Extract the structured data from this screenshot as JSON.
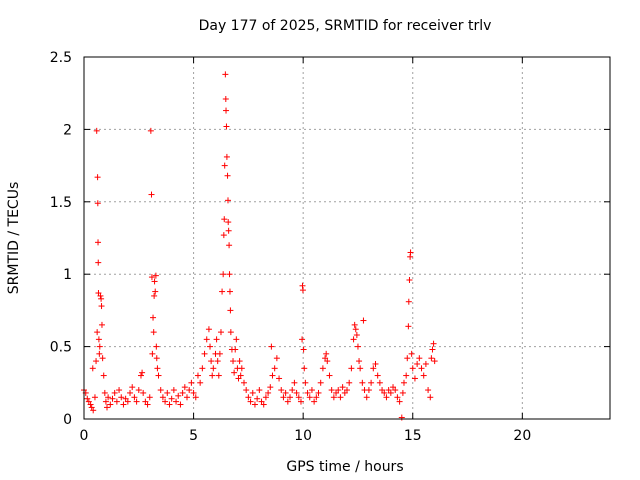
{
  "chart_data": {
    "type": "scatter",
    "title": "Day 177 of 2025, SRMTID for receiver trlv",
    "xlabel": "GPS time / hours",
    "ylabel": "SRMTID / TECUs",
    "xlim": [
      0,
      24
    ],
    "ylim": [
      0,
      2.5
    ],
    "xticks": [
      0,
      5,
      10,
      15,
      20
    ],
    "yticks": [
      0,
      0.5,
      1,
      1.5,
      2,
      2.5
    ],
    "xtick_labels": [
      "0",
      "5",
      "10",
      "15",
      "20"
    ],
    "ytick_labels": [
      "0",
      "0.5",
      "1",
      "1.5",
      "2",
      "2.5"
    ],
    "grid": true,
    "marker": "plus",
    "series_color": "#ff0000",
    "series": [
      {
        "name": "SRMTID",
        "points": [
          [
            0.0,
            0.2
          ],
          [
            0.08,
            0.18
          ],
          [
            0.15,
            0.14
          ],
          [
            0.22,
            0.12
          ],
          [
            0.3,
            0.1
          ],
          [
            0.35,
            0.08
          ],
          [
            0.4,
            0.35
          ],
          [
            0.42,
            0.06
          ],
          [
            0.5,
            0.15
          ],
          [
            0.55,
            0.4
          ],
          [
            0.58,
            1.99
          ],
          [
            0.6,
            0.6
          ],
          [
            0.62,
            1.67
          ],
          [
            0.63,
            1.49
          ],
          [
            0.64,
            1.22
          ],
          [
            0.65,
            1.08
          ],
          [
            0.66,
            0.87
          ],
          [
            0.68,
            0.55
          ],
          [
            0.7,
            0.45
          ],
          [
            0.72,
            0.5
          ],
          [
            0.75,
            0.85
          ],
          [
            0.78,
            0.83
          ],
          [
            0.8,
            0.78
          ],
          [
            0.82,
            0.65
          ],
          [
            0.85,
            0.42
          ],
          [
            0.9,
            0.3
          ],
          [
            0.95,
            0.18
          ],
          [
            1.0,
            0.12
          ],
          [
            1.05,
            0.08
          ],
          [
            1.1,
            0.15
          ],
          [
            1.2,
            0.1
          ],
          [
            1.3,
            0.14
          ],
          [
            1.4,
            0.18
          ],
          [
            1.5,
            0.12
          ],
          [
            1.6,
            0.2
          ],
          [
            1.7,
            0.15
          ],
          [
            1.8,
            0.1
          ],
          [
            1.9,
            0.14
          ],
          [
            2.0,
            0.12
          ],
          [
            2.1,
            0.18
          ],
          [
            2.2,
            0.22
          ],
          [
            2.3,
            0.15
          ],
          [
            2.4,
            0.12
          ],
          [
            2.5,
            0.2
          ],
          [
            2.6,
            0.3
          ],
          [
            2.65,
            0.32
          ],
          [
            2.7,
            0.18
          ],
          [
            2.8,
            0.12
          ],
          [
            2.9,
            0.1
          ],
          [
            3.0,
            0.15
          ],
          [
            3.05,
            1.99
          ],
          [
            3.08,
            1.55
          ],
          [
            3.1,
            0.98
          ],
          [
            3.12,
            0.45
          ],
          [
            3.15,
            0.7
          ],
          [
            3.18,
            0.6
          ],
          [
            3.2,
            0.85
          ],
          [
            3.22,
            0.95
          ],
          [
            3.25,
            0.88
          ],
          [
            3.28,
            0.99
          ],
          [
            3.3,
            0.5
          ],
          [
            3.32,
            0.42
          ],
          [
            3.35,
            0.35
          ],
          [
            3.4,
            0.3
          ],
          [
            3.5,
            0.2
          ],
          [
            3.6,
            0.15
          ],
          [
            3.7,
            0.12
          ],
          [
            3.8,
            0.18
          ],
          [
            3.9,
            0.1
          ],
          [
            4.0,
            0.14
          ],
          [
            4.1,
            0.2
          ],
          [
            4.2,
            0.12
          ],
          [
            4.3,
            0.16
          ],
          [
            4.4,
            0.1
          ],
          [
            4.5,
            0.18
          ],
          [
            4.6,
            0.22
          ],
          [
            4.7,
            0.15
          ],
          [
            4.8,
            0.2
          ],
          [
            4.9,
            0.25
          ],
          [
            5.0,
            0.18
          ],
          [
            5.1,
            0.15
          ],
          [
            5.2,
            0.3
          ],
          [
            5.3,
            0.25
          ],
          [
            5.4,
            0.35
          ],
          [
            5.5,
            0.45
          ],
          [
            5.6,
            0.55
          ],
          [
            5.7,
            0.62
          ],
          [
            5.75,
            0.5
          ],
          [
            5.8,
            0.4
          ],
          [
            5.85,
            0.3
          ],
          [
            5.9,
            0.35
          ],
          [
            6.0,
            0.45
          ],
          [
            6.05,
            0.55
          ],
          [
            6.1,
            0.4
          ],
          [
            6.15,
            0.3
          ],
          [
            6.2,
            0.45
          ],
          [
            6.25,
            0.6
          ],
          [
            6.3,
            0.88
          ],
          [
            6.35,
            1.0
          ],
          [
            6.38,
            1.27
          ],
          [
            6.4,
            1.38
          ],
          [
            6.42,
            1.75
          ],
          [
            6.45,
            2.38
          ],
          [
            6.47,
            2.21
          ],
          [
            6.48,
            2.13
          ],
          [
            6.5,
            2.02
          ],
          [
            6.52,
            1.81
          ],
          [
            6.55,
            1.68
          ],
          [
            6.57,
            1.51
          ],
          [
            6.58,
            1.36
          ],
          [
            6.6,
            1.3
          ],
          [
            6.62,
            1.2
          ],
          [
            6.64,
            1.0
          ],
          [
            6.66,
            0.88
          ],
          [
            6.68,
            0.75
          ],
          [
            6.7,
            0.6
          ],
          [
            6.75,
            0.48
          ],
          [
            6.8,
            0.4
          ],
          [
            6.85,
            0.32
          ],
          [
            6.9,
            0.48
          ],
          [
            6.95,
            0.55
          ],
          [
            7.0,
            0.35
          ],
          [
            7.05,
            0.28
          ],
          [
            7.1,
            0.4
          ],
          [
            7.15,
            0.3
          ],
          [
            7.2,
            0.35
          ],
          [
            7.3,
            0.25
          ],
          [
            7.4,
            0.2
          ],
          [
            7.5,
            0.15
          ],
          [
            7.6,
            0.12
          ],
          [
            7.7,
            0.18
          ],
          [
            7.8,
            0.1
          ],
          [
            7.9,
            0.14
          ],
          [
            8.0,
            0.2
          ],
          [
            8.1,
            0.12
          ],
          [
            8.2,
            0.1
          ],
          [
            8.3,
            0.15
          ],
          [
            8.4,
            0.18
          ],
          [
            8.5,
            0.22
          ],
          [
            8.55,
            0.5
          ],
          [
            8.6,
            0.3
          ],
          [
            8.7,
            0.35
          ],
          [
            8.8,
            0.42
          ],
          [
            8.9,
            0.28
          ],
          [
            9.0,
            0.2
          ],
          [
            9.1,
            0.15
          ],
          [
            9.2,
            0.18
          ],
          [
            9.3,
            0.12
          ],
          [
            9.4,
            0.15
          ],
          [
            9.5,
            0.2
          ],
          [
            9.6,
            0.25
          ],
          [
            9.7,
            0.18
          ],
          [
            9.8,
            0.15
          ],
          [
            9.9,
            0.12
          ],
          [
            9.95,
            0.55
          ],
          [
            9.97,
            0.92
          ],
          [
            9.99,
            0.89
          ],
          [
            10.02,
            0.48
          ],
          [
            10.05,
            0.35
          ],
          [
            10.1,
            0.25
          ],
          [
            10.2,
            0.18
          ],
          [
            10.3,
            0.15
          ],
          [
            10.4,
            0.2
          ],
          [
            10.5,
            0.12
          ],
          [
            10.6,
            0.15
          ],
          [
            10.7,
            0.18
          ],
          [
            10.8,
            0.25
          ],
          [
            10.9,
            0.35
          ],
          [
            11.0,
            0.42
          ],
          [
            11.05,
            0.45
          ],
          [
            11.1,
            0.4
          ],
          [
            11.2,
            0.3
          ],
          [
            11.3,
            0.2
          ],
          [
            11.4,
            0.15
          ],
          [
            11.5,
            0.18
          ],
          [
            11.6,
            0.2
          ],
          [
            11.7,
            0.15
          ],
          [
            11.8,
            0.22
          ],
          [
            11.9,
            0.18
          ],
          [
            12.0,
            0.2
          ],
          [
            12.1,
            0.25
          ],
          [
            12.2,
            0.35
          ],
          [
            12.3,
            0.55
          ],
          [
            12.35,
            0.65
          ],
          [
            12.4,
            0.62
          ],
          [
            12.45,
            0.58
          ],
          [
            12.5,
            0.5
          ],
          [
            12.55,
            0.4
          ],
          [
            12.6,
            0.35
          ],
          [
            12.7,
            0.25
          ],
          [
            12.75,
            0.68
          ],
          [
            12.8,
            0.2
          ],
          [
            12.9,
            0.15
          ],
          [
            13.0,
            0.2
          ],
          [
            13.1,
            0.25
          ],
          [
            13.2,
            0.35
          ],
          [
            13.3,
            0.38
          ],
          [
            13.4,
            0.3
          ],
          [
            13.5,
            0.25
          ],
          [
            13.6,
            0.2
          ],
          [
            13.7,
            0.18
          ],
          [
            13.8,
            0.15
          ],
          [
            13.9,
            0.2
          ],
          [
            14.0,
            0.18
          ],
          [
            14.1,
            0.22
          ],
          [
            14.2,
            0.2
          ],
          [
            14.3,
            0.15
          ],
          [
            14.4,
            0.12
          ],
          [
            14.5,
            0.01
          ],
          [
            14.55,
            0.18
          ],
          [
            14.6,
            0.25
          ],
          [
            14.7,
            0.3
          ],
          [
            14.75,
            0.42
          ],
          [
            14.8,
            0.64
          ],
          [
            14.82,
            0.81
          ],
          [
            14.85,
            0.96
          ],
          [
            14.88,
            1.12
          ],
          [
            14.9,
            1.15
          ],
          [
            14.95,
            0.45
          ],
          [
            15.0,
            0.35
          ],
          [
            15.1,
            0.28
          ],
          [
            15.2,
            0.38
          ],
          [
            15.3,
            0.42
          ],
          [
            15.4,
            0.35
          ],
          [
            15.5,
            0.3
          ],
          [
            15.6,
            0.38
          ],
          [
            15.7,
            0.2
          ],
          [
            15.8,
            0.15
          ],
          [
            15.85,
            0.42
          ],
          [
            15.9,
            0.48
          ],
          [
            15.95,
            0.52
          ],
          [
            16.0,
            0.4
          ]
        ]
      }
    ]
  }
}
